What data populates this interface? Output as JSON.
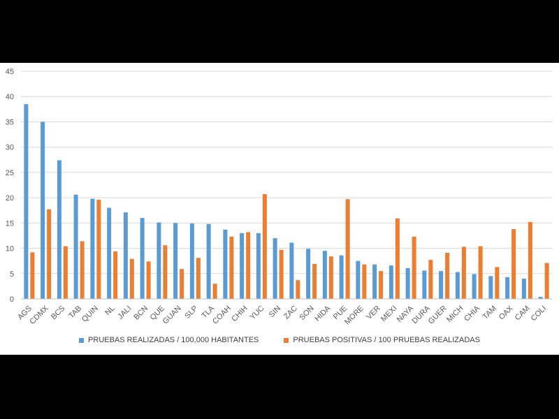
{
  "chart_data": {
    "type": "bar",
    "title": "",
    "xlabel": "",
    "ylabel": "",
    "ylim": [
      0,
      45
    ],
    "y_ticks": [
      0,
      5,
      10,
      15,
      20,
      25,
      30,
      35,
      40,
      45
    ],
    "grid": "horizontal",
    "legend_position": "bottom",
    "categories": [
      "AGS",
      "CDMX",
      "BCS",
      "TAB",
      "QUIN",
      "NL",
      "JALI",
      "BCN",
      "QUE",
      "GUAN",
      "SLP",
      "TLA",
      "COAH",
      "CHIH",
      "YUC",
      "SIN",
      "ZAC",
      "SON",
      "HIDA",
      "PUE",
      "MORE",
      "VER",
      "MEXI",
      "NAYA",
      "DURA",
      "GUER",
      "MICH",
      "CHIA",
      "TAM",
      "OAX",
      "CAM",
      "COLI"
    ],
    "series": [
      {
        "name": "PRUEBAS REALIZADAS / 100,000 HABITANTES",
        "color": "#5b9bd5",
        "values": [
          38.5,
          35.0,
          27.4,
          20.6,
          19.8,
          18.0,
          17.1,
          16.0,
          15.1,
          15.0,
          14.9,
          14.8,
          13.7,
          13.0,
          13.0,
          12.0,
          11.1,
          9.9,
          9.5,
          8.6,
          7.5,
          6.8,
          6.6,
          6.1,
          5.6,
          5.5,
          5.3,
          4.9,
          4.5,
          4.3,
          4.0,
          0.4
        ]
      },
      {
        "name": "PRUEBAS POSITIVAS / 100 PRUEBAS REALIZADAS",
        "color": "#ed7d31",
        "values": [
          9.2,
          17.7,
          10.4,
          11.4,
          19.6,
          9.4,
          7.9,
          7.4,
          10.6,
          5.9,
          8.1,
          3.0,
          12.3,
          13.2,
          20.7,
          9.7,
          3.7,
          6.9,
          8.4,
          19.7,
          6.8,
          5.5,
          15.9,
          12.3,
          7.7,
          9.1,
          10.3,
          10.4,
          6.3,
          13.8,
          15.2,
          7.1
        ]
      }
    ]
  }
}
